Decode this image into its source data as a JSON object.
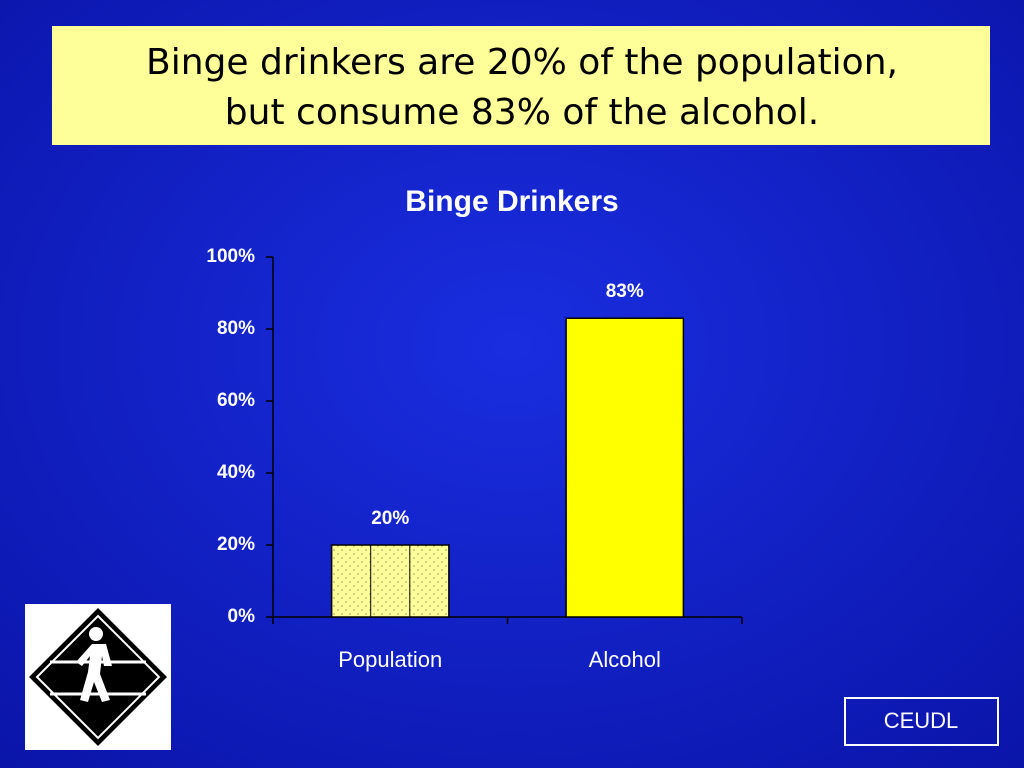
{
  "slide": {
    "heading": [
      "Binge drinkers are 20% of the population,",
      "but consume 83% of the alcohol."
    ],
    "footer": "CEUDL"
  },
  "chart_data": {
    "type": "bar",
    "title": "Binge Drinkers",
    "categories": [
      "Population",
      "Alcohol"
    ],
    "values": [
      20,
      83
    ],
    "value_labels": [
      "20%",
      "83%"
    ],
    "colors": [
      "#ffff99",
      "#ffff00"
    ],
    "patterns": [
      "dots",
      "none"
    ],
    "ylim": [
      0,
      100
    ],
    "yticks": [
      {
        "value": 0,
        "label": "0%"
      },
      {
        "value": 20,
        "label": "20%"
      },
      {
        "value": 40,
        "label": "40%"
      },
      {
        "value": 60,
        "label": "60%"
      },
      {
        "value": 80,
        "label": "80%"
      },
      {
        "value": 100,
        "label": "100%"
      }
    ],
    "grid": false
  }
}
